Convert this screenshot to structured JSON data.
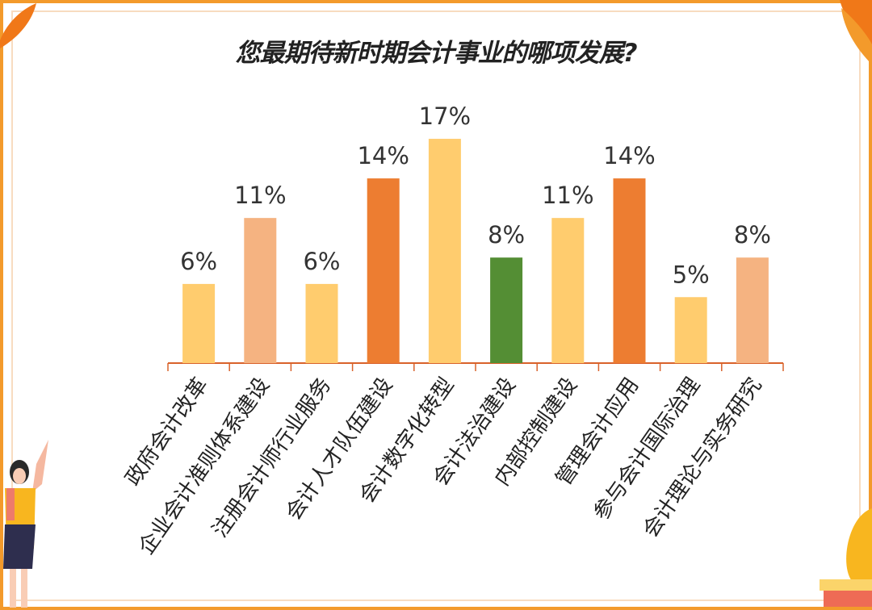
{
  "chart_data": {
    "type": "bar",
    "title": "您最期待新时期会计事业的哪项发展?",
    "categories": [
      "政府会计改革",
      "企业会计准则体系建设",
      "注册会计师行业服务",
      "会计人才队伍建设",
      "会计数字化转型",
      "会计法治建设",
      "内部控制建设",
      "管理会计应用",
      "参与会计国际治理",
      "会计理论与实务研究"
    ],
    "values": [
      6,
      11,
      6,
      14,
      17,
      8,
      11,
      14,
      5,
      8
    ],
    "value_labels": [
      "6%",
      "11%",
      "6%",
      "14%",
      "17%",
      "8%",
      "11%",
      "14%",
      "5%",
      "8%"
    ],
    "unit": "%",
    "colors": [
      "#FFCC6E",
      "#F5B381",
      "#FFCC6E",
      "#ED7D31",
      "#FFCC6E",
      "#548E34",
      "#FFCC6E",
      "#ED7D31",
      "#FFCC6E",
      "#F5B381"
    ],
    "axis_color": "#D9622B",
    "ylim": [
      0,
      17
    ],
    "grid": false,
    "legend": "none"
  }
}
